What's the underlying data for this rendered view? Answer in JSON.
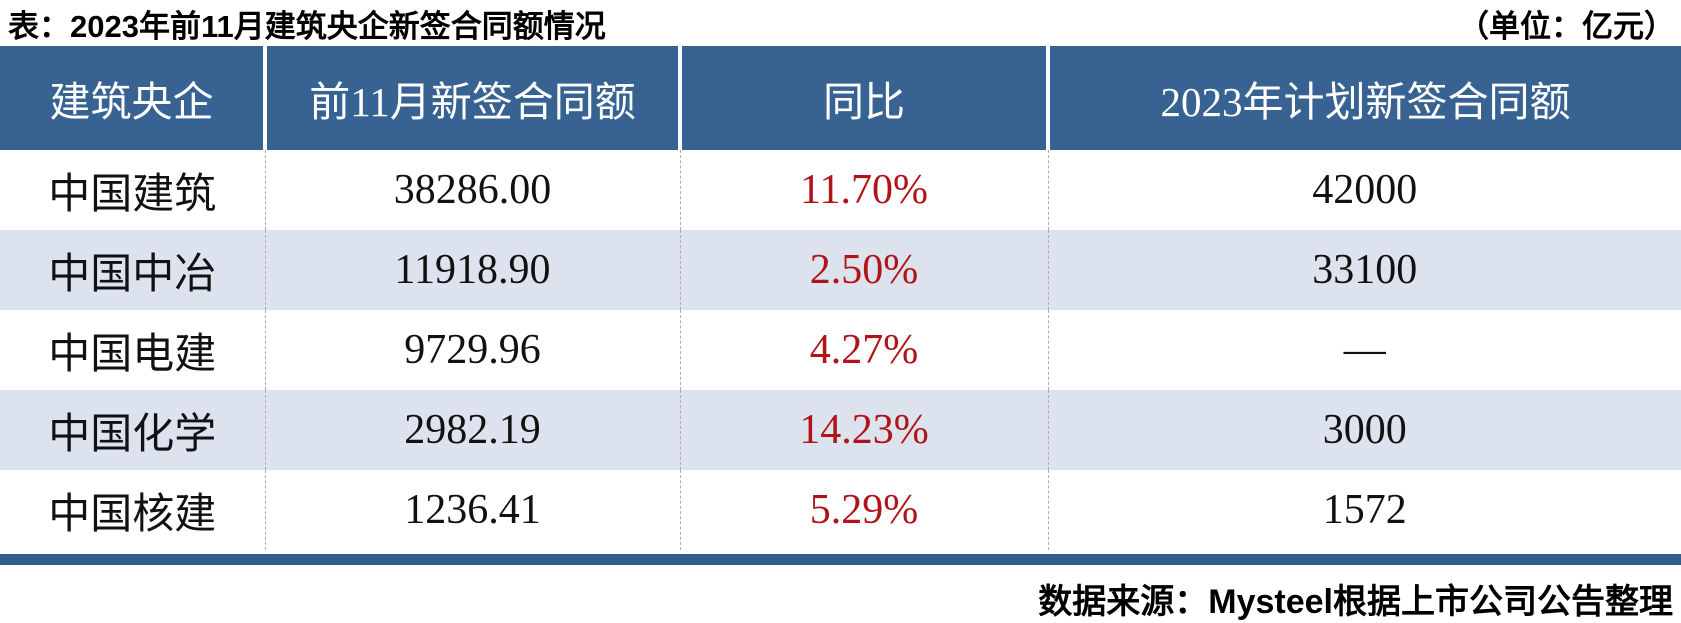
{
  "title": "表：2023年前11月建筑央企新签合同额情况",
  "unit_label": "（单位：亿元）",
  "table": {
    "columns": [
      "建筑央企",
      "前11月新签合同额",
      "同比",
      "2023年计划新签合同额"
    ],
    "rows": [
      {
        "company": "中国建筑",
        "new_contract": "38286.00",
        "yoy": "11.70%",
        "plan_2023": "42000"
      },
      {
        "company": "中国中冶",
        "new_contract": "11918.90",
        "yoy": "2.50%",
        "plan_2023": "33100"
      },
      {
        "company": "中国电建",
        "new_contract": "9729.96",
        "yoy": "4.27%",
        "plan_2023": "—"
      },
      {
        "company": "中国化学",
        "new_contract": "2982.19",
        "yoy": "14.23%",
        "plan_2023": "3000"
      },
      {
        "company": "中国核建",
        "new_contract": "1236.41",
        "yoy": "5.29%",
        "plan_2023": "1572"
      }
    ]
  },
  "footer": {
    "source": "数据来源：Mysteel根据上市公司公告整理"
  },
  "colors": {
    "header_bg": "#386292",
    "bar_color": "#2f5d8c",
    "alt_row_bg": "#dce3ee",
    "yoy_red": "#b11418"
  }
}
